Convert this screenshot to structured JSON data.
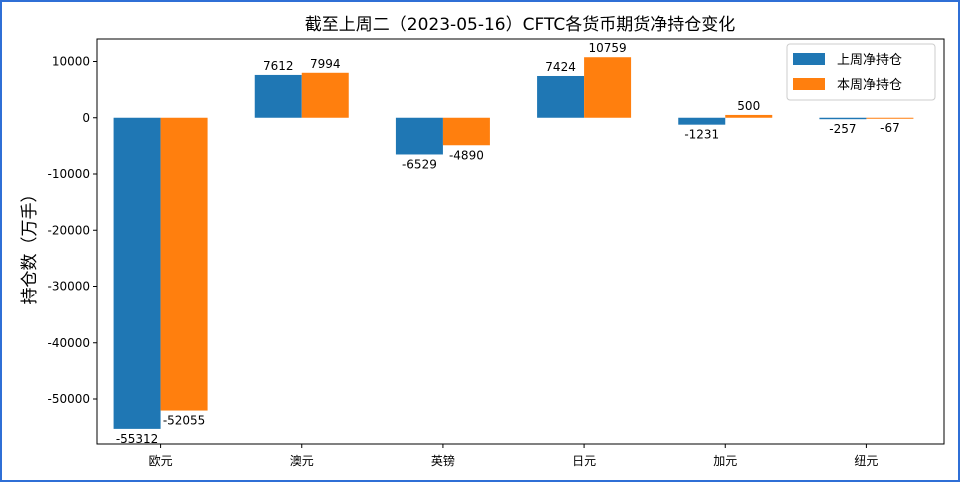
{
  "chart_data": {
    "type": "bar",
    "title": "截至上周二（2023-05-16）CFTC各货币期货净持仓变化",
    "ylabel": "持仓数（万手）",
    "xlabel": "",
    "categories": [
      "欧元",
      "澳元",
      "英镑",
      "日元",
      "加元",
      "纽元"
    ],
    "series": [
      {
        "name": "上周净持仓",
        "color": "#1f77b4",
        "values": [
          -55312,
          7612,
          -6529,
          7424,
          -1231,
          -257
        ]
      },
      {
        "name": "本周净持仓",
        "color": "#ff7f0e",
        "values": [
          -52055,
          7994,
          -4890,
          10759,
          500,
          -67
        ]
      }
    ],
    "ylim": [
      -58000,
      14000
    ],
    "yticks": [
      -50000,
      -40000,
      -30000,
      -20000,
      -10000,
      0,
      10000
    ],
    "grid": false,
    "legend_position": "top-right"
  }
}
